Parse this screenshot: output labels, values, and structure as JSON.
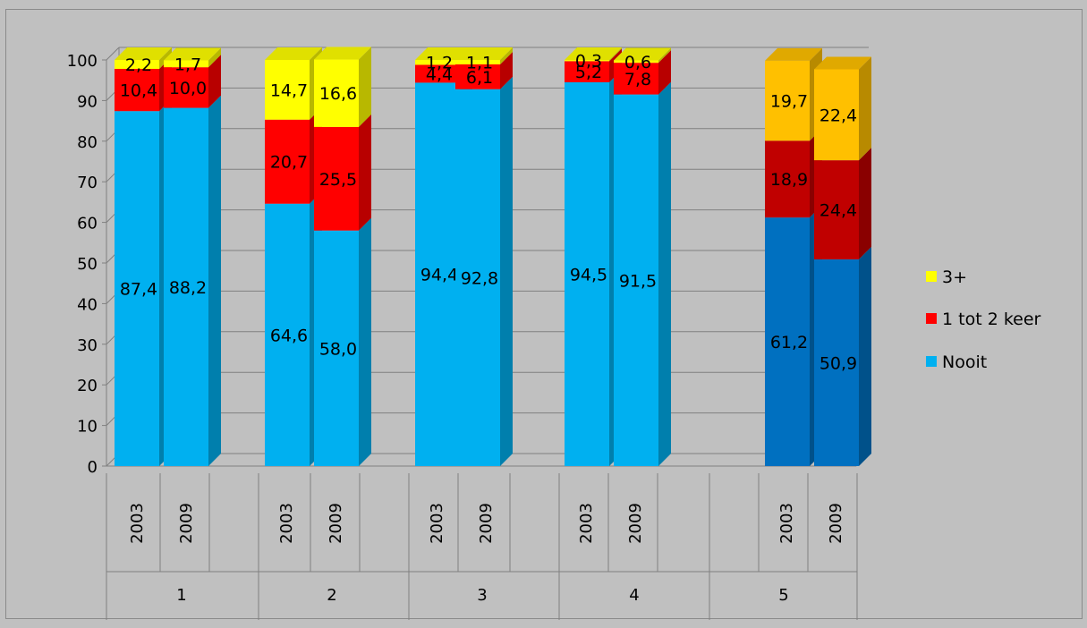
{
  "chart_data": {
    "type": "bar",
    "stacked": true,
    "style": "3d",
    "groups": [
      "1",
      "2",
      "3",
      "4",
      "5"
    ],
    "years": [
      "2003",
      "2009"
    ],
    "ylim": [
      0,
      100
    ],
    "yticks": [
      "0",
      "10",
      "20",
      "30",
      "40",
      "50",
      "60",
      "70",
      "80",
      "90",
      "100"
    ],
    "grid": true,
    "legend_position": "right",
    "series": [
      {
        "name": "Nooit",
        "color": "#00b0f0",
        "values": [
          87.4,
          88.2,
          64.6,
          58.0,
          94.4,
          92.8,
          94.5,
          91.5,
          61.2,
          50.9
        ],
        "labels": [
          "87,4",
          "88,2",
          "64,6",
          "58,0",
          "94,4",
          "92,8",
          "94,5",
          "91,5",
          "61,2",
          "50,9"
        ]
      },
      {
        "name": "1 tot 2 keer",
        "color": "#ff0000",
        "values": [
          10.4,
          10.0,
          20.7,
          25.5,
          4.4,
          6.1,
          5.2,
          7.8,
          18.9,
          24.4
        ],
        "labels": [
          "10,4",
          "10,0",
          "20,7",
          "25,5",
          "4,4",
          "6,1",
          "5,2",
          "7,8",
          "18,9",
          "24,4"
        ]
      },
      {
        "name": "3+",
        "color": "#ffff00",
        "values": [
          2.2,
          1.7,
          14.7,
          16.6,
          1.2,
          1.1,
          0.3,
          0.6,
          19.7,
          22.4
        ],
        "labels": [
          "2,2",
          "1,7",
          "14,7",
          "16,6",
          "1,2",
          "1,1",
          "0,3",
          "0,6",
          "19,7",
          "22,4"
        ]
      }
    ],
    "group5_colors": [
      "#0070c0",
      "#c00000",
      "#ffc000"
    ]
  }
}
